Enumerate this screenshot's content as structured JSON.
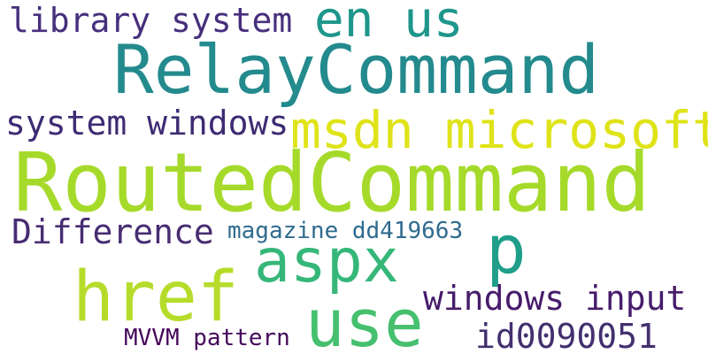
{
  "words": [
    {
      "text": "RoutedCommand"
    },
    {
      "text": "RelayCommand"
    },
    {
      "text": "href"
    },
    {
      "text": "use"
    },
    {
      "text": "aspx"
    },
    {
      "text": "p"
    },
    {
      "text": "msdn microsoft"
    },
    {
      "text": "en us"
    },
    {
      "text": "library system"
    },
    {
      "text": "system windows"
    },
    {
      "text": "Difference"
    },
    {
      "text": "windows input"
    },
    {
      "text": "id0090051"
    },
    {
      "text": "magazine dd419663"
    },
    {
      "text": "MVVM pattern"
    }
  ]
}
